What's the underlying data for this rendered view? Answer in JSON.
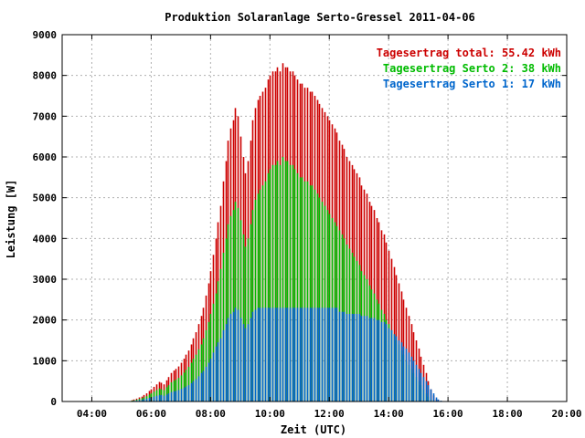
{
  "chart_data": {
    "type": "bar",
    "title": "Produktion Solaranlage Serto-Gressel 2011-04-06",
    "xlabel": "Zeit (UTC)",
    "ylabel": "Leistung [W]",
    "x_ticks": [
      "04:00",
      "06:00",
      "08:00",
      "10:00",
      "12:00",
      "14:00",
      "16:00",
      "18:00",
      "20:00"
    ],
    "y_ticks": [
      "0",
      "1000",
      "2000",
      "3000",
      "4000",
      "5000",
      "6000",
      "7000",
      "8000",
      "9000"
    ],
    "xlim_hours": [
      3,
      20
    ],
    "ylim": [
      0,
      9000
    ],
    "grid": true,
    "legend_position": "top-right",
    "colors": {
      "total": "#cc0000",
      "serto2": "#00bb00",
      "serto1": "#0066cc"
    },
    "legend": [
      {
        "key": "total",
        "text": "Tagesertrag total: 55.42 kWh"
      },
      {
        "key": "serto2",
        "text": "Tagesertrag Serto 2: 38 kWh"
      },
      {
        "key": "serto1",
        "text": "Tagesertrag Serto 1: 17 kWh"
      }
    ],
    "series": [
      {
        "key": "total",
        "name": "Tagesertrag total: 55.42 kWh",
        "values": []
      },
      {
        "key": "serto2",
        "name": "Tagesertrag Serto 2: 38 kWh",
        "values": []
      },
      {
        "key": "serto1",
        "name": "Tagesertrag Serto 1: 17 kWh",
        "values": []
      }
    ],
    "times": [
      "05:20",
      "05:25",
      "05:30",
      "05:35",
      "05:40",
      "05:45",
      "05:50",
      "05:55",
      "06:00",
      "06:05",
      "06:10",
      "06:15",
      "06:20",
      "06:25",
      "06:30",
      "06:35",
      "06:40",
      "06:45",
      "06:50",
      "06:55",
      "07:00",
      "07:05",
      "07:10",
      "07:15",
      "07:20",
      "07:25",
      "07:30",
      "07:35",
      "07:40",
      "07:45",
      "07:50",
      "07:55",
      "08:00",
      "08:05",
      "08:10",
      "08:15",
      "08:20",
      "08:25",
      "08:30",
      "08:35",
      "08:40",
      "08:45",
      "08:50",
      "08:55",
      "09:00",
      "09:05",
      "09:10",
      "09:15",
      "09:20",
      "09:25",
      "09:30",
      "09:35",
      "09:40",
      "09:45",
      "09:50",
      "09:55",
      "10:00",
      "10:05",
      "10:10",
      "10:15",
      "10:20",
      "10:25",
      "10:30",
      "10:35",
      "10:40",
      "10:45",
      "10:50",
      "10:55",
      "11:00",
      "11:05",
      "11:10",
      "11:15",
      "11:20",
      "11:25",
      "11:30",
      "11:35",
      "11:40",
      "11:45",
      "11:50",
      "11:55",
      "12:00",
      "12:05",
      "12:10",
      "12:15",
      "12:20",
      "12:25",
      "12:30",
      "12:35",
      "12:40",
      "12:45",
      "12:50",
      "12:55",
      "13:00",
      "13:05",
      "13:10",
      "13:15",
      "13:20",
      "13:25",
      "13:30",
      "13:35",
      "13:40",
      "13:45",
      "13:50",
      "13:55",
      "14:00",
      "14:05",
      "14:10",
      "14:15",
      "14:20",
      "14:25",
      "14:30",
      "14:35",
      "14:40",
      "14:45",
      "14:50",
      "14:55",
      "15:00",
      "15:05",
      "15:10",
      "15:15",
      "15:20",
      "15:25",
      "15:30",
      "15:35",
      "15:40",
      "15:45",
      "15:50",
      "15:55",
      "16:00",
      "16:05",
      "16:10",
      "16:15",
      "16:20",
      "16:25",
      "16:30",
      "16:35",
      "16:40",
      "16:45",
      "16:50",
      "16:55",
      "17:00",
      "17:05",
      "17:10",
      "17:15",
      "17:20",
      "17:25",
      "17:30",
      "17:35",
      "17:40",
      "17:45"
    ],
    "total_values": [
      30,
      50,
      70,
      100,
      120,
      160,
      200,
      260,
      300,
      360,
      420,
      480,
      460,
      420,
      520,
      600,
      700,
      760,
      800,
      860,
      950,
      1050,
      1150,
      1250,
      1400,
      1550,
      1700,
      1900,
      2100,
      2300,
      2600,
      2900,
      3200,
      3600,
      4000,
      4400,
      4800,
      5400,
      5900,
      6400,
      6700,
      6900,
      7200,
      7000,
      6500,
      6000,
      5600,
      5900,
      6400,
      6900,
      7200,
      7400,
      7500,
      7600,
      7700,
      7900,
      8000,
      8100,
      8100,
      8200,
      8100,
      8300,
      8200,
      8200,
      8100,
      8100,
      8000,
      7900,
      7800,
      7800,
      7700,
      7700,
      7600,
      7600,
      7500,
      7400,
      7300,
      7200,
      7100,
      7000,
      6900,
      6800,
      6700,
      6600,
      6400,
      6300,
      6200,
      6000,
      5900,
      5800,
      5700,
      5600,
      5500,
      5300,
      5200,
      5100,
      4900,
      4800,
      4700,
      4500,
      4400,
      4200,
      4100,
      3900,
      3700,
      3500,
      3300,
      3100,
      2900,
      2700,
      2500,
      2300,
      2100,
      1900,
      1700,
      1500,
      1300,
      1100,
      900,
      700,
      500,
      300,
      150,
      60,
      20,
      0,
      0,
      0,
      0,
      0,
      0,
      0,
      0,
      0,
      0,
      0,
      0,
      0,
      0,
      0,
      0,
      0,
      0,
      0,
      0,
      0,
      0,
      0
    ],
    "serto2_values": [
      20,
      30,
      45,
      65,
      80,
      100,
      130,
      170,
      200,
      240,
      280,
      320,
      300,
      280,
      350,
      400,
      470,
      510,
      540,
      580,
      640,
      710,
      780,
      850,
      950,
      1050,
      1150,
      1280,
      1400,
      1550,
      1750,
      1950,
      2150,
      2400,
      2650,
      2950,
      3250,
      3650,
      4000,
      4350,
      4550,
      4700,
      4900,
      4750,
      4450,
      4100,
      3800,
      4000,
      4350,
      4700,
      4950,
      5100,
      5200,
      5300,
      5400,
      5600,
      5700,
      5800,
      5800,
      5900,
      5800,
      6000,
      5900,
      5900,
      5800,
      5800,
      5700,
      5600,
      5500,
      5500,
      5400,
      5400,
      5300,
      5300,
      5200,
      5100,
      5000,
      4900,
      4800,
      4700,
      4600,
      4500,
      4400,
      4300,
      4200,
      4100,
      4000,
      3850,
      3750,
      3650,
      3550,
      3450,
      3350,
      3200,
      3100,
      3000,
      2850,
      2750,
      2650,
      2500,
      2400,
      2250,
      2150,
      2000,
      1900,
      1750,
      1650,
      1500,
      1400,
      1250,
      1150,
      1000,
      900,
      800,
      700,
      600,
      500,
      400,
      300,
      200,
      120,
      60,
      30,
      10,
      0,
      0,
      0,
      0,
      0,
      0,
      0,
      0,
      0,
      0,
      0,
      0,
      0,
      0,
      0,
      0,
      0,
      0,
      0,
      0,
      0,
      0,
      0,
      0
    ],
    "serto1_values": [
      10,
      20,
      25,
      35,
      40,
      60,
      70,
      90,
      100,
      120,
      140,
      160,
      160,
      140,
      170,
      200,
      230,
      250,
      260,
      280,
      310,
      340,
      370,
      400,
      450,
      500,
      550,
      620,
      700,
      750,
      850,
      950,
      1050,
      1200,
      1350,
      1450,
      1550,
      1750,
      1900,
      2050,
      2150,
      2200,
      2300,
      2250,
      2050,
      1900,
      1800,
      1900,
      2050,
      2200,
      2250,
      2300,
      2300,
      2300,
      2300,
      2300,
      2300,
      2300,
      2300,
      2300,
      2300,
      2300,
      2300,
      2300,
      2300,
      2300,
      2300,
      2300,
      2300,
      2300,
      2300,
      2300,
      2300,
      2300,
      2300,
      2300,
      2300,
      2300,
      2300,
      2300,
      2300,
      2300,
      2300,
      2300,
      2200,
      2200,
      2200,
      2150,
      2150,
      2150,
      2150,
      2150,
      2150,
      2100,
      2100,
      2100,
      2050,
      2050,
      2050,
      2000,
      2000,
      1950,
      1950,
      1900,
      1800,
      1750,
      1650,
      1600,
      1500,
      1450,
      1350,
      1300,
      1200,
      1100,
      1000,
      900,
      800,
      700,
      600,
      500,
      400,
      300,
      200,
      100,
      50,
      20,
      0,
      0,
      0,
      0,
      0,
      0,
      0,
      0,
      0,
      0,
      0,
      0,
      0,
      0,
      0,
      0,
      0,
      0,
      0,
      0,
      0,
      0
    ]
  }
}
